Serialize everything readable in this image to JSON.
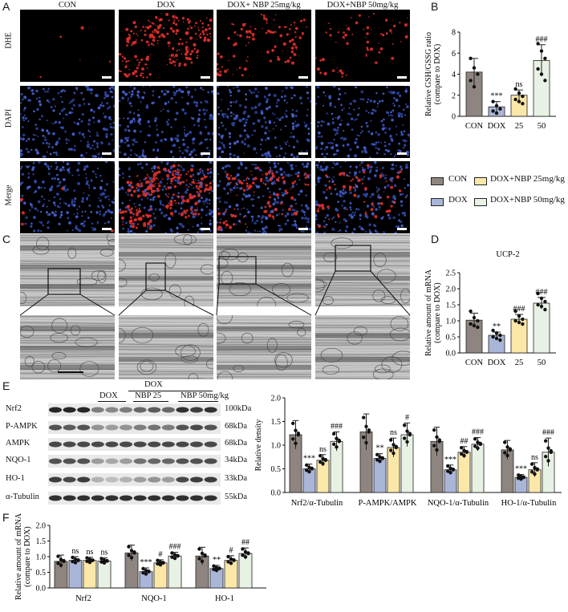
{
  "panel_labels": {
    "A": "A",
    "B": "B",
    "C": "C",
    "D": "D",
    "E": "E",
    "F": "F"
  },
  "panelA": {
    "columns": [
      "CON",
      "DOX",
      "DOX+ NBP 25mg/kg",
      "DOX+NBP 50mg/kg"
    ],
    "rows": [
      "DHE",
      "DAPI",
      "Merge"
    ]
  },
  "legend": {
    "items": [
      {
        "label": "CON",
        "color": "#8f8580"
      },
      {
        "label": "DOX+NBP 25mg/kg",
        "color": "#fbe7a8"
      },
      {
        "label": "DOX",
        "color": "#aab6d8"
      },
      {
        "label": "DOX+NBP 50mg/kg",
        "color": "#e8f2e4"
      }
    ]
  },
  "panelE": {
    "header": {
      "dox1": "DOX",
      "dox2": "DOX",
      "nbp25": "NBP 25",
      "nbp50": "NBP 50mg/kg"
    },
    "blots": [
      {
        "name": "Nrf2",
        "kda": "100kDa"
      },
      {
        "name": "P-AMPK",
        "kda": "68kDa"
      },
      {
        "name": "AMPK",
        "kda": "68kDa"
      },
      {
        "name": "NQO-1",
        "kda": "34kDa"
      },
      {
        "name": "HO-1",
        "kda": "33kDa"
      },
      {
        "name": "α-Tubulin",
        "kda": "55kDa"
      }
    ]
  },
  "chart_data": [
    {
      "id": "B",
      "type": "bar",
      "categories": [
        "CON",
        "DOX",
        "25",
        "50"
      ],
      "values": [
        4.2,
        0.9,
        2.0,
        5.3
      ],
      "errors": [
        1.3,
        0.5,
        0.5,
        1.5
      ],
      "points": [
        [
          5.5,
          4.6,
          4.0,
          3.4,
          2.8
        ],
        [
          1.4,
          1.0,
          0.7,
          0.5,
          0.3
        ],
        [
          2.6,
          2.2,
          1.9,
          1.6,
          1.4,
          1.2
        ],
        [
          6.9,
          6.2,
          5.5,
          4.5,
          4.0,
          3.4
        ]
      ],
      "annotations": [
        "",
        "***",
        "ns",
        "###"
      ],
      "ylabel": "Relative GSH/GSSG ratio\n(compare to DOX)",
      "ylim": [
        0,
        8
      ],
      "yticks": [
        "0",
        "2",
        "4",
        "6",
        "8"
      ]
    },
    {
      "id": "D",
      "type": "bar",
      "title": "UCP-2",
      "categories": [
        "CON",
        "DOX",
        "25",
        "50"
      ],
      "values": [
        1.02,
        0.55,
        1.05,
        1.55
      ],
      "errors": [
        0.22,
        0.1,
        0.15,
        0.18
      ],
      "points": [
        [
          1.3,
          1.1,
          1.0,
          0.9,
          0.85,
          0.8
        ],
        [
          0.7,
          0.62,
          0.55,
          0.5,
          0.45,
          0.4
        ],
        [
          1.3,
          1.15,
          1.05,
          1.0,
          0.95,
          0.9
        ],
        [
          1.85,
          1.7,
          1.6,
          1.5,
          1.45,
          1.35
        ]
      ],
      "annotations": [
        "",
        "**",
        "###",
        "###"
      ],
      "ylabel": "Relative amount of mRNA\n(compare to DOX)",
      "ylim": [
        0,
        2.5
      ],
      "yticks": [
        "0.0",
        "0.5",
        "1.0",
        "1.5",
        "2.0",
        "2.5"
      ]
    },
    {
      "id": "E",
      "type": "bar",
      "groups": [
        "Nrf2/α-Tubulin",
        "P-AMPK/AMPK",
        "NQO-1/α-Tubulin",
        "HO-1/α-Tubulin"
      ],
      "series_colors": [
        "#8f8580",
        "#aab6d8",
        "#fbe7a8",
        "#e8f2e4"
      ],
      "values": [
        [
          1.22,
          0.5,
          0.68,
          1.08
        ],
        [
          1.28,
          0.72,
          0.95,
          1.22
        ],
        [
          1.08,
          0.48,
          0.85,
          1.02
        ],
        [
          0.9,
          0.32,
          0.48,
          0.85
        ]
      ],
      "errors": [
        [
          0.3,
          0.1,
          0.12,
          0.2
        ],
        [
          0.38,
          0.1,
          0.2,
          0.25
        ],
        [
          0.3,
          0.1,
          0.12,
          0.14
        ],
        [
          0.2,
          0.06,
          0.15,
          0.3
        ]
      ],
      "annotations": [
        [
          "",
          "***",
          "ns",
          "###"
        ],
        [
          "",
          "**",
          "ns",
          "#"
        ],
        [
          "",
          "***",
          "##",
          "###"
        ],
        [
          "",
          "***",
          "ns",
          "###"
        ]
      ],
      "ylabel": "Relative density",
      "ylim": [
        0,
        2.0
      ],
      "yticks": [
        "0.0",
        "0.5",
        "1.0",
        "1.5",
        "2.0"
      ]
    },
    {
      "id": "F",
      "type": "bar",
      "groups": [
        "Nrf2",
        "NQO-1",
        "HO-1"
      ],
      "series_colors": [
        "#8f8580",
        "#aab6d8",
        "#fbe7a8",
        "#e8f2e4"
      ],
      "values": [
        [
          0.85,
          0.88,
          0.88,
          0.86
        ],
        [
          1.12,
          0.52,
          0.8,
          1.02
        ],
        [
          1.02,
          0.62,
          0.88,
          1.1
        ]
      ],
      "errors": [
        [
          0.2,
          0.12,
          0.1,
          0.1
        ],
        [
          0.25,
          0.12,
          0.1,
          0.12
        ],
        [
          0.28,
          0.1,
          0.15,
          0.18
        ]
      ],
      "annotations": [
        [
          "",
          "ns",
          "ns",
          "ns"
        ],
        [
          "",
          "***",
          "#",
          "###"
        ],
        [
          "",
          "**",
          "#",
          "##"
        ]
      ],
      "ylabel": "Relative amount of mRNA\n(compare to DOX)",
      "ylim": [
        0,
        2.0
      ],
      "yticks": [
        "0.0",
        "0.5",
        "1.0",
        "1.5",
        "2.0"
      ]
    }
  ]
}
